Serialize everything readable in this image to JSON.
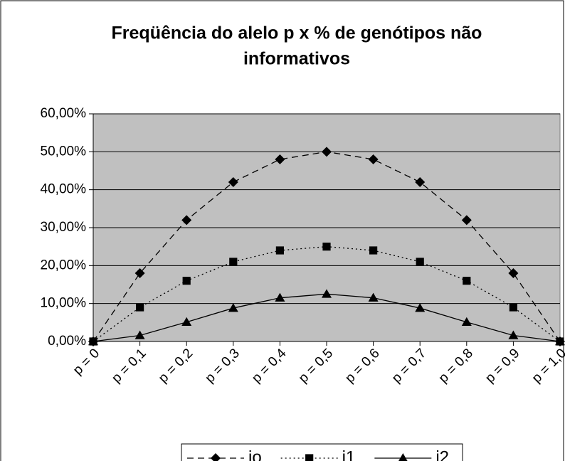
{
  "chart_data": {
    "type": "line",
    "title": [
      "Freqüência do alelo p x % de genótipos não",
      "informativos"
    ],
    "categories": [
      "p = 0",
      "p = 0,1",
      "p = 0,2",
      "p = 0,3",
      "p = 0,4",
      "p = 0,5",
      "p = 0,6",
      "p = 0,7",
      "p = 0,8",
      "p = 0,9",
      "p = 1,0"
    ],
    "series": [
      {
        "name": "io",
        "color": "#000000",
        "dash": "9,6",
        "marker": "diamond",
        "values": [
          0,
          18,
          32,
          42,
          48,
          50,
          48,
          42,
          32,
          18,
          0
        ]
      },
      {
        "name": "i1",
        "color": "#000000",
        "dash": "2,4",
        "marker": "square",
        "values": [
          0,
          9,
          16,
          21,
          24,
          25,
          24,
          21,
          16,
          9,
          0
        ]
      },
      {
        "name": "i2",
        "color": "#000000",
        "dash": "none",
        "marker": "triangle",
        "values": [
          0,
          1.6,
          5.1,
          8.8,
          11.5,
          12.5,
          11.5,
          8.8,
          5.1,
          1.6,
          0
        ]
      }
    ],
    "ylim": [
      0,
      60
    ],
    "yticks": [
      {
        "value": 0,
        "label": "0,00%"
      },
      {
        "value": 10,
        "label": "10,00%"
      },
      {
        "value": 20,
        "label": "20,00%"
      },
      {
        "value": 30,
        "label": "30,00%"
      },
      {
        "value": 40,
        "label": "40,00%"
      },
      {
        "value": 50,
        "label": "50,00%"
      },
      {
        "value": 60,
        "label": "60,00%"
      }
    ],
    "grid": true,
    "plot_background": "#c0c0c0",
    "legend": "bottom"
  }
}
